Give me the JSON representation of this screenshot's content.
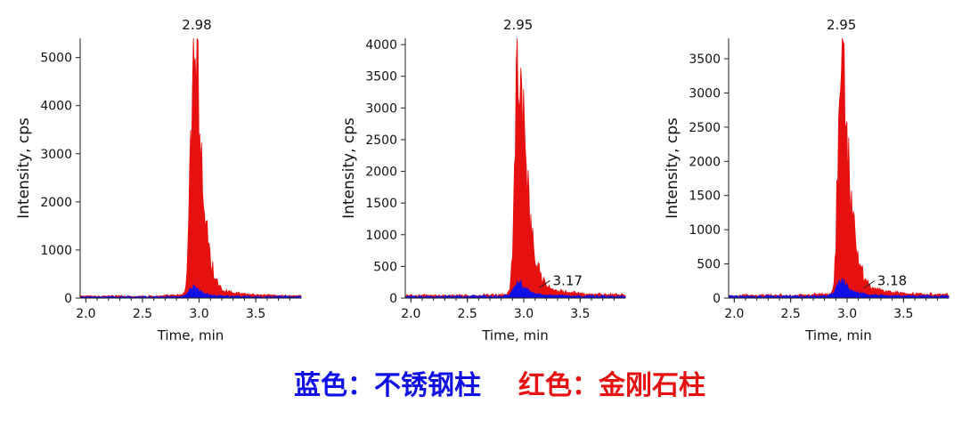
{
  "legend": {
    "blue_text": "蓝色：不锈钢柱",
    "red_text": "红色：金刚石柱",
    "blue_color": "#1010e6",
    "red_color": "#e61010"
  },
  "chart_data": [
    {
      "type": "area",
      "xlabel": "Time, min",
      "ylabel": "Intensity, cps",
      "xlim": [
        1.95,
        3.9
      ],
      "ylim": [
        0,
        5400
      ],
      "xticks": [
        2.0,
        2.5,
        3.0,
        3.5
      ],
      "xtick_labels": [
        "2.0",
        "2.5",
        "3.0",
        "3.5"
      ],
      "yticks": [
        0,
        1000,
        2000,
        3000,
        4000,
        5000
      ],
      "ytick_labels": [
        "0",
        "1000",
        "2000",
        "3000",
        "4000",
        "5000"
      ],
      "annotations": [
        {
          "text": "2.98",
          "x": 2.98,
          "y": 5400,
          "target": "top"
        }
      ],
      "series": [
        {
          "color": "#e61010",
          "x": [
            1.95,
            2.6,
            2.85,
            2.88,
            2.9,
            2.92,
            2.95,
            2.98,
            3.0,
            3.03,
            3.06,
            3.1,
            3.15,
            3.2,
            3.3,
            3.45,
            3.6,
            3.9
          ],
          "y": [
            40,
            40,
            60,
            150,
            900,
            3200,
            4700,
            5300,
            3700,
            2400,
            1500,
            800,
            350,
            180,
            110,
            80,
            60,
            40
          ]
        },
        {
          "color": "#1010e6",
          "x": [
            1.95,
            2.8,
            2.88,
            2.92,
            2.96,
            3.0,
            3.05,
            3.1,
            3.2,
            3.4,
            3.9
          ],
          "y": [
            25,
            25,
            50,
            170,
            230,
            150,
            90,
            60,
            40,
            30,
            25
          ]
        }
      ]
    },
    {
      "type": "area",
      "xlabel": "Time, min",
      "ylabel": "Intensity, cps",
      "xlim": [
        1.95,
        3.9
      ],
      "ylim": [
        0,
        4100
      ],
      "xticks": [
        2.0,
        2.5,
        3.0,
        3.5
      ],
      "xtick_labels": [
        "2.0",
        "2.5",
        "3.0",
        "3.5"
      ],
      "yticks": [
        0,
        500,
        1000,
        1500,
        2000,
        2500,
        3000,
        3500,
        4000
      ],
      "ytick_labels": [
        "0",
        "500",
        "1000",
        "1500",
        "2000",
        "2500",
        "3000",
        "3500",
        "4000"
      ],
      "annotations": [
        {
          "text": "2.95",
          "x": 2.95,
          "y": 4100,
          "target": "top"
        },
        {
          "text": "3.17",
          "x": 3.17,
          "y": 220,
          "target": "side"
        }
      ],
      "series": [
        {
          "color": "#e61010",
          "x": [
            1.95,
            2.6,
            2.85,
            2.88,
            2.9,
            2.92,
            2.95,
            2.98,
            3.0,
            3.03,
            3.06,
            3.1,
            3.15,
            3.2,
            3.3,
            3.45,
            3.6,
            3.9
          ],
          "y": [
            40,
            40,
            60,
            150,
            800,
            2700,
            4050,
            3700,
            2600,
            1800,
            1200,
            650,
            350,
            200,
            110,
            80,
            60,
            50
          ]
        },
        {
          "color": "#1010e6",
          "x": [
            1.95,
            2.8,
            2.88,
            2.92,
            2.96,
            3.0,
            3.05,
            3.1,
            3.2,
            3.4,
            3.9
          ],
          "y": [
            25,
            25,
            60,
            200,
            290,
            180,
            110,
            70,
            45,
            35,
            25
          ]
        }
      ]
    },
    {
      "type": "area",
      "xlabel": "Time, min",
      "ylabel": "Intensity, cps",
      "xlim": [
        1.95,
        3.9
      ],
      "ylim": [
        0,
        3800
      ],
      "xticks": [
        2.0,
        2.5,
        3.0,
        3.5
      ],
      "xtick_labels": [
        "2.0",
        "2.5",
        "3.0",
        "3.5"
      ],
      "yticks": [
        0,
        500,
        1000,
        1500,
        2000,
        2500,
        3000,
        3500
      ],
      "ytick_labels": [
        "0",
        "500",
        "1000",
        "1500",
        "2000",
        "2500",
        "3000",
        "3500"
      ],
      "annotations": [
        {
          "text": "2.95",
          "x": 2.95,
          "y": 3800,
          "target": "top"
        },
        {
          "text": "3.18",
          "x": 3.18,
          "y": 200,
          "target": "side"
        }
      ],
      "series": [
        {
          "color": "#e61010",
          "x": [
            1.95,
            2.6,
            2.85,
            2.88,
            2.9,
            2.92,
            2.95,
            2.98,
            3.0,
            3.03,
            3.06,
            3.1,
            3.15,
            3.2,
            3.3,
            3.45,
            3.6,
            3.9
          ],
          "y": [
            40,
            40,
            60,
            150,
            700,
            2400,
            3750,
            3300,
            2300,
            1600,
            1050,
            560,
            320,
            180,
            110,
            80,
            60,
            50
          ]
        },
        {
          "color": "#1010e6",
          "x": [
            1.95,
            2.8,
            2.88,
            2.92,
            2.96,
            3.0,
            3.05,
            3.1,
            3.2,
            3.4,
            3.9
          ],
          "y": [
            25,
            25,
            60,
            190,
            270,
            170,
            110,
            70,
            45,
            35,
            25
          ]
        }
      ]
    }
  ]
}
